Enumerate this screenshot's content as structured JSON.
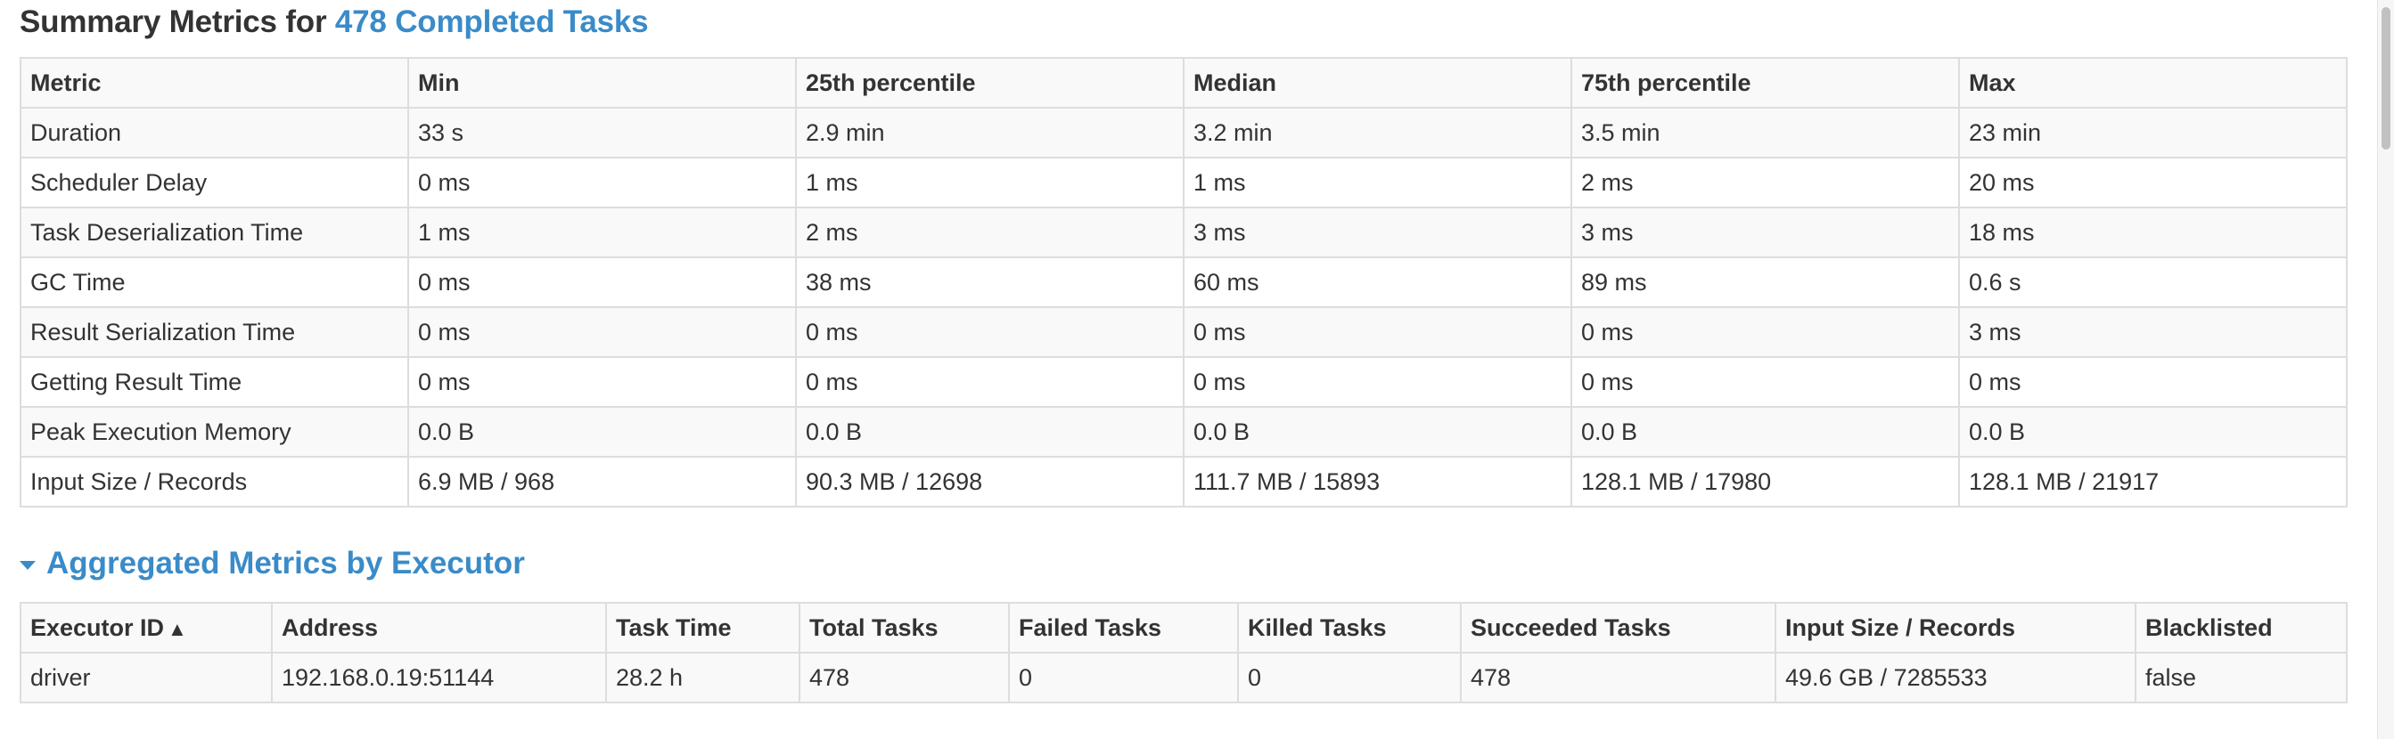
{
  "summary": {
    "title_prefix": "Summary Metrics for ",
    "title_link": "478 Completed Tasks",
    "columns": [
      "Metric",
      "Min",
      "25th percentile",
      "Median",
      "75th percentile",
      "Max"
    ],
    "rows": [
      [
        "Duration",
        "33 s",
        "2.9 min",
        "3.2 min",
        "3.5 min",
        "23 min"
      ],
      [
        "Scheduler Delay",
        "0 ms",
        "1 ms",
        "1 ms",
        "2 ms",
        "20 ms"
      ],
      [
        "Task Deserialization Time",
        "1 ms",
        "2 ms",
        "3 ms",
        "3 ms",
        "18 ms"
      ],
      [
        "GC Time",
        "0 ms",
        "38 ms",
        "60 ms",
        "89 ms",
        "0.6 s"
      ],
      [
        "Result Serialization Time",
        "0 ms",
        "0 ms",
        "0 ms",
        "0 ms",
        "3 ms"
      ],
      [
        "Getting Result Time",
        "0 ms",
        "0 ms",
        "0 ms",
        "0 ms",
        "0 ms"
      ],
      [
        "Peak Execution Memory",
        "0.0 B",
        "0.0 B",
        "0.0 B",
        "0.0 B",
        "0.0 B"
      ],
      [
        "Input Size / Records",
        "6.9 MB / 968",
        "90.3 MB / 12698",
        "111.7 MB / 15893",
        "128.1 MB / 17980",
        "128.1 MB / 21917"
      ]
    ]
  },
  "aggregated": {
    "title": "Aggregated Metrics by Executor",
    "columns": [
      "Executor ID",
      "Address",
      "Task Time",
      "Total Tasks",
      "Failed Tasks",
      "Killed Tasks",
      "Succeeded Tasks",
      "Input Size / Records",
      "Blacklisted"
    ],
    "sort_indicator": "▲",
    "rows": [
      [
        "driver",
        "192.168.0.19:51144",
        "28.2 h",
        "478",
        "0",
        "0",
        "478",
        "49.6 GB / 7285533",
        "false"
      ]
    ]
  },
  "colors": {
    "link": "#3a8bc8",
    "text": "#333333",
    "border": "#dddddd",
    "stripe": "#f9f9f9"
  },
  "icons": {
    "collapse_arrow": "triangle-down-icon",
    "sort": "sort-ascending-icon"
  }
}
